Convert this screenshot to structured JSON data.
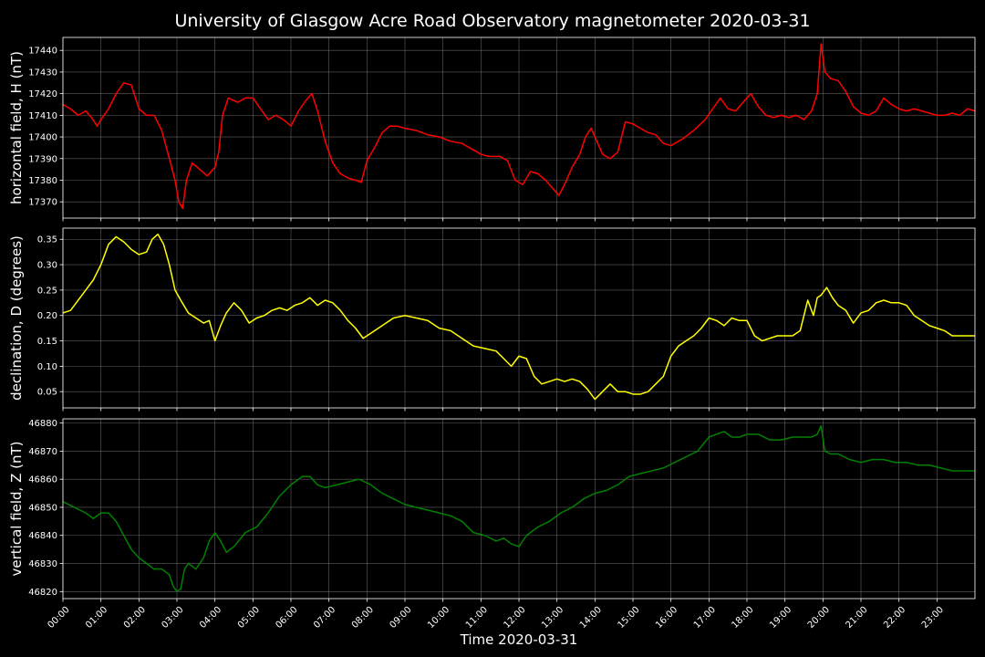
{
  "chart_data": {
    "type": "line",
    "title": "University of Glasgow Acre Road Observatory magnetometer 2020-03-31",
    "xlabel": "Time 2020-03-31",
    "x_ticks": [
      "00:00",
      "01:00",
      "02:00",
      "03:00",
      "04:00",
      "05:00",
      "06:00",
      "07:00",
      "08:00",
      "09:00",
      "10:00",
      "11:00",
      "12:00",
      "13:00",
      "14:00",
      "15:00",
      "16:00",
      "17:00",
      "18:00",
      "19:00",
      "20:00",
      "21:00",
      "22:00",
      "23:00"
    ],
    "x_range_hours": [
      0,
      24
    ],
    "grid": true,
    "panels": [
      {
        "ylabel": "horizontal field, H (nT)",
        "color": "#ff0000",
        "ylim": [
          17362.5,
          17446
        ],
        "yticks": [
          17370,
          17380,
          17390,
          17400,
          17410,
          17420,
          17430,
          17440
        ],
        "tick_decimals": 0,
        "series": {
          "x": [
            0,
            0.2,
            0.4,
            0.6,
            0.75,
            0.9,
            1.0,
            1.2,
            1.4,
            1.6,
            1.8,
            2.0,
            2.2,
            2.4,
            2.6,
            2.8,
            2.95,
            3.05,
            3.15,
            3.25,
            3.4,
            3.6,
            3.8,
            4.0,
            4.1,
            4.2,
            4.35,
            4.6,
            4.8,
            5.0,
            5.2,
            5.4,
            5.6,
            5.8,
            6.0,
            6.2,
            6.4,
            6.55,
            6.7,
            6.9,
            7.1,
            7.3,
            7.5,
            7.7,
            7.85,
            8.0,
            8.2,
            8.4,
            8.6,
            8.8,
            9.0,
            9.3,
            9.6,
            9.9,
            10.2,
            10.5,
            10.8,
            11.0,
            11.2,
            11.5,
            11.7,
            11.9,
            12.1,
            12.3,
            12.5,
            12.7,
            12.9,
            13.05,
            13.2,
            13.4,
            13.6,
            13.75,
            13.9,
            14.05,
            14.2,
            14.4,
            14.6,
            14.8,
            15.0,
            15.2,
            15.4,
            15.6,
            15.8,
            16.0,
            16.3,
            16.6,
            16.9,
            17.1,
            17.3,
            17.5,
            17.7,
            17.9,
            18.1,
            18.3,
            18.5,
            18.7,
            18.9,
            19.1,
            19.3,
            19.5,
            19.7,
            19.85,
            19.95,
            20.05,
            20.2,
            20.4,
            20.6,
            20.8,
            21.0,
            21.2,
            21.4,
            21.6,
            21.8,
            22.0,
            22.2,
            22.4,
            22.6,
            22.8,
            23.0,
            23.2,
            23.4,
            23.6,
            23.8,
            24.0
          ],
          "y": [
            17415,
            17413,
            17410,
            17412,
            17409,
            17405,
            17408,
            17413,
            17420,
            17425,
            17424,
            17413,
            17410,
            17410,
            17403,
            17390,
            17380,
            17370,
            17367,
            17380,
            17388,
            17385,
            17382,
            17386,
            17393,
            17410,
            17418,
            17416,
            17418,
            17418,
            17413,
            17408,
            17410,
            17408,
            17405,
            17412,
            17417,
            17420,
            17412,
            17398,
            17388,
            17383,
            17381,
            17380,
            17379,
            17389,
            17395,
            17402,
            17405,
            17405,
            17404,
            17403,
            17401,
            17400,
            17398,
            17397,
            17394,
            17392,
            17391,
            17391,
            17389,
            17380,
            17378,
            17384,
            17383,
            17380,
            17376,
            17373,
            17378,
            17386,
            17392,
            17400,
            17404,
            17398,
            17392,
            17390,
            17393,
            17407,
            17406,
            17404,
            17402,
            17401,
            17397,
            17396,
            17399,
            17403,
            17408,
            17413,
            17418,
            17413,
            17412,
            17416,
            17420,
            17414,
            17410,
            17409,
            17410,
            17409,
            17410,
            17408,
            17412,
            17420,
            17443,
            17430,
            17427,
            17426,
            17421,
            17414,
            17411,
            17410,
            17412,
            17418,
            17415,
            17413,
            17412,
            17413,
            17412,
            17411,
            17410,
            17410,
            17411,
            17410,
            17413,
            17412
          ]
        }
      },
      {
        "ylabel": "declination, D (degrees)",
        "color": "#ffff00",
        "ylim": [
          0.018,
          0.372
        ],
        "yticks": [
          0.05,
          0.1,
          0.15,
          0.2,
          0.25,
          0.3,
          0.35
        ],
        "tick_decimals": 2,
        "series": {
          "x": [
            0,
            0.2,
            0.4,
            0.6,
            0.8,
            1.0,
            1.2,
            1.4,
            1.6,
            1.8,
            2.0,
            2.2,
            2.35,
            2.5,
            2.65,
            2.8,
            2.95,
            3.1,
            3.3,
            3.5,
            3.7,
            3.85,
            4.0,
            4.15,
            4.3,
            4.5,
            4.7,
            4.9,
            5.1,
            5.3,
            5.5,
            5.7,
            5.9,
            6.1,
            6.3,
            6.5,
            6.7,
            6.9,
            7.1,
            7.3,
            7.5,
            7.7,
            7.9,
            8.1,
            8.4,
            8.7,
            9.0,
            9.3,
            9.6,
            9.9,
            10.2,
            10.5,
            10.8,
            11.1,
            11.4,
            11.6,
            11.8,
            12.0,
            12.2,
            12.4,
            12.6,
            12.8,
            13.0,
            13.2,
            13.4,
            13.6,
            13.8,
            14.0,
            14.2,
            14.4,
            14.6,
            14.8,
            15.0,
            15.2,
            15.4,
            15.6,
            15.8,
            16.0,
            16.2,
            16.4,
            16.6,
            16.8,
            17.0,
            17.2,
            17.4,
            17.6,
            17.8,
            18.0,
            18.2,
            18.4,
            18.6,
            18.8,
            19.0,
            19.2,
            19.4,
            19.6,
            19.75,
            19.85,
            19.95,
            20.1,
            20.25,
            20.4,
            20.6,
            20.8,
            21.0,
            21.2,
            21.4,
            21.6,
            21.8,
            22.0,
            22.2,
            22.4,
            22.6,
            22.8,
            23.0,
            23.2,
            23.4,
            23.6,
            23.8,
            24.0
          ],
          "y": [
            0.205,
            0.21,
            0.23,
            0.25,
            0.27,
            0.3,
            0.34,
            0.355,
            0.345,
            0.33,
            0.32,
            0.325,
            0.35,
            0.36,
            0.34,
            0.3,
            0.25,
            0.23,
            0.205,
            0.195,
            0.185,
            0.19,
            0.15,
            0.18,
            0.205,
            0.225,
            0.21,
            0.185,
            0.195,
            0.2,
            0.21,
            0.215,
            0.21,
            0.22,
            0.225,
            0.235,
            0.22,
            0.23,
            0.225,
            0.21,
            0.19,
            0.175,
            0.155,
            0.165,
            0.18,
            0.195,
            0.2,
            0.195,
            0.19,
            0.175,
            0.17,
            0.155,
            0.14,
            0.135,
            0.13,
            0.115,
            0.1,
            0.12,
            0.115,
            0.08,
            0.065,
            0.07,
            0.075,
            0.07,
            0.075,
            0.07,
            0.055,
            0.035,
            0.05,
            0.065,
            0.05,
            0.05,
            0.045,
            0.045,
            0.05,
            0.065,
            0.08,
            0.12,
            0.14,
            0.15,
            0.16,
            0.175,
            0.195,
            0.19,
            0.18,
            0.195,
            0.19,
            0.19,
            0.16,
            0.15,
            0.155,
            0.16,
            0.16,
            0.16,
            0.17,
            0.23,
            0.2,
            0.235,
            0.24,
            0.255,
            0.235,
            0.22,
            0.21,
            0.185,
            0.205,
            0.21,
            0.225,
            0.23,
            0.225,
            0.225,
            0.22,
            0.2,
            0.19,
            0.18,
            0.175,
            0.17,
            0.16,
            0.16,
            0.16,
            0.16
          ]
        }
      },
      {
        "ylabel": "vertical field, Z (nT)",
        "color": "#008000",
        "ylim": [
          46817.5,
          46881.5
        ],
        "yticks": [
          46820,
          46830,
          46840,
          46850,
          46860,
          46870,
          46880
        ],
        "tick_decimals": 0,
        "series": {
          "x": [
            0,
            0.3,
            0.6,
            0.8,
            1.0,
            1.2,
            1.4,
            1.6,
            1.8,
            2.0,
            2.2,
            2.4,
            2.6,
            2.8,
            2.9,
            3.0,
            3.1,
            3.2,
            3.3,
            3.5,
            3.7,
            3.85,
            4.0,
            4.15,
            4.3,
            4.5,
            4.8,
            5.1,
            5.4,
            5.7,
            6.0,
            6.3,
            6.5,
            6.7,
            6.9,
            7.2,
            7.5,
            7.8,
            8.1,
            8.4,
            8.7,
            9.0,
            9.3,
            9.6,
            9.9,
            10.2,
            10.5,
            10.8,
            11.1,
            11.4,
            11.6,
            11.8,
            12.0,
            12.2,
            12.5,
            12.8,
            13.1,
            13.4,
            13.7,
            14.0,
            14.3,
            14.6,
            14.9,
            15.2,
            15.5,
            15.8,
            16.1,
            16.4,
            16.7,
            17.0,
            17.2,
            17.4,
            17.6,
            17.8,
            18.0,
            18.3,
            18.6,
            18.9,
            19.2,
            19.5,
            19.7,
            19.85,
            19.95,
            20.05,
            20.2,
            20.4,
            20.7,
            21.0,
            21.3,
            21.6,
            21.9,
            22.2,
            22.5,
            22.8,
            23.1,
            23.4,
            23.7,
            24.0
          ],
          "y": [
            46852,
            46850,
            46848,
            46846,
            46848,
            46848,
            46845,
            46840,
            46835,
            46832,
            46830,
            46828,
            46828,
            46826,
            46822,
            46820,
            46821,
            46828,
            46830,
            46828,
            46832,
            46838,
            46841,
            46838,
            46834,
            46836,
            46841,
            46843,
            46848,
            46854,
            46858,
            46861,
            46861,
            46858,
            46857,
            46858,
            46859,
            46860,
            46858,
            46855,
            46853,
            46851,
            46850,
            46849,
            46848,
            46847,
            46845,
            46841,
            46840,
            46838,
            46839,
            46837,
            46836,
            46840,
            46843,
            46845,
            46848,
            46850,
            46853,
            46855,
            46856,
            46858,
            46861,
            46862,
            46863,
            46864,
            46866,
            46868,
            46870,
            46875,
            46876,
            46877,
            46875,
            46875,
            46876,
            46876,
            46874,
            46874,
            46875,
            46875,
            46875,
            46876,
            46879,
            46870,
            46869,
            46869,
            46867,
            46866,
            46867,
            46867,
            46866,
            46866,
            46865,
            46865,
            46864,
            46863,
            46863,
            46863
          ]
        }
      }
    ]
  }
}
